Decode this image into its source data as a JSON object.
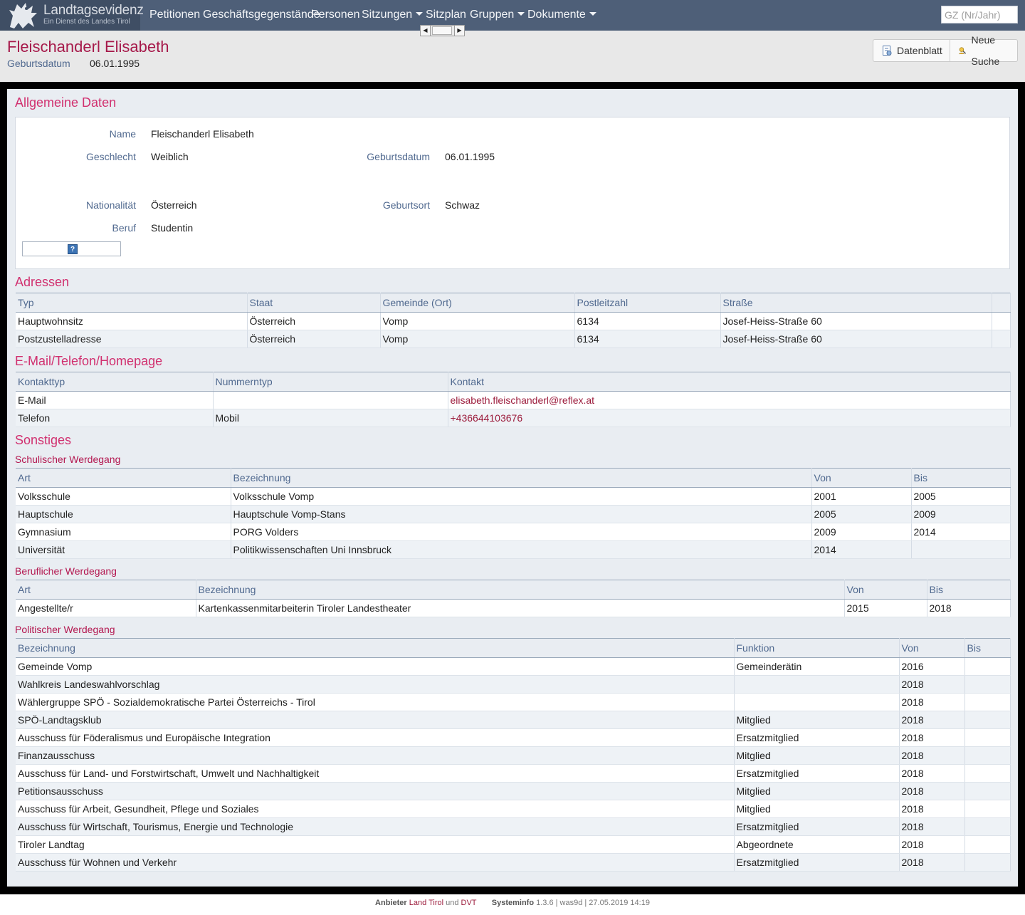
{
  "app": {
    "title": "Landtagsevidenz",
    "subtitle": "Ein Dienst des Landes Tirol"
  },
  "nav": {
    "items": [
      "Petitionen",
      "Geschäftsgegenstände",
      "Personen",
      "Sitzungen",
      "Sitzplan",
      "Gruppen",
      "Dokumente"
    ],
    "search_placeholder": "GZ (Nr/Jahr)"
  },
  "header": {
    "name": "Fleischanderl Elisabeth",
    "birth_label": "Geburtsdatum",
    "birth_value": "06.01.1995",
    "buttons": {
      "datenblatt": "Datenblatt",
      "neue_suche": "Neue Suche"
    }
  },
  "general": {
    "title": "Allgemeine Daten",
    "fields": {
      "name_label": "Name",
      "name_value": "Fleischanderl Elisabeth",
      "gender_label": "Geschlecht",
      "gender_value": "Weiblich",
      "birth_label": "Geburtsdatum",
      "birth_value": "06.01.1995",
      "nation_label": "Nationalität",
      "nation_value": "Österreich",
      "birthplace_label": "Geburtsort",
      "birthplace_value": "Schwaz",
      "job_label": "Beruf",
      "job_value": "Studentin"
    },
    "help_icon": "?"
  },
  "addresses": {
    "title": "Adressen",
    "columns": [
      "Typ",
      "Staat",
      "Gemeinde (Ort)",
      "Postleitzahl",
      "Straße"
    ],
    "rows": [
      [
        "Hauptwohnsitz",
        "Österreich",
        "Vomp",
        "6134",
        "Josef-Heiss-Straße 60"
      ],
      [
        "Postzustelladresse",
        "Österreich",
        "Vomp",
        "6134",
        "Josef-Heiss-Straße 60"
      ]
    ]
  },
  "contact": {
    "title": "E-Mail/Telefon/Homepage",
    "columns": [
      "Kontakttyp",
      "Nummerntyp",
      "Kontakt"
    ],
    "rows": [
      [
        "E-Mail",
        "",
        "elisabeth.fleischanderl@reflex.at"
      ],
      [
        "Telefon",
        "Mobil",
        "+436644103676"
      ]
    ]
  },
  "other": {
    "title": "Sonstiges",
    "school": {
      "title": "Schulischer Werdegang",
      "columns": [
        "Art",
        "Bezeichnung",
        "Von",
        "Bis"
      ],
      "rows": [
        [
          "Volksschule",
          "Volksschule Vomp",
          "2001",
          "2005"
        ],
        [
          "Hauptschule",
          "Hauptschule Vomp-Stans",
          "2005",
          "2009"
        ],
        [
          "Gymnasium",
          "PORG Volders",
          "2009",
          "2014"
        ],
        [
          "Universität",
          "Politikwissenschaften Uni Innsbruck",
          "2014",
          ""
        ]
      ]
    },
    "career": {
      "title": "Beruflicher Werdegang",
      "columns": [
        "Art",
        "Bezeichnung",
        "Von",
        "Bis"
      ],
      "rows": [
        [
          "Angestellte/r",
          "Kartenkassenmitarbeiterin Tiroler Landestheater",
          "2015",
          "2018"
        ]
      ]
    },
    "political": {
      "title": "Politischer Werdegang",
      "columns": [
        "Bezeichnung",
        "Funktion",
        "Von",
        "Bis"
      ],
      "rows": [
        [
          "Gemeinde Vomp",
          "Gemeinderätin",
          "2016",
          ""
        ],
        [
          "Wahlkreis Landeswahlvorschlag",
          "",
          "2018",
          ""
        ],
        [
          "Wählergruppe SPÖ - Sozialdemokratische Partei Österreichs - Tirol",
          "",
          "2018",
          ""
        ],
        [
          "SPÖ-Landtagsklub",
          "Mitglied",
          "2018",
          ""
        ],
        [
          "Ausschuss für Föderalismus und Europäische Integration",
          "Ersatzmitglied",
          "2018",
          ""
        ],
        [
          "Finanzausschuss",
          "Mitglied",
          "2018",
          ""
        ],
        [
          "Ausschuss für Land- und Forstwirtschaft, Umwelt und Nachhaltigkeit",
          "Ersatzmitglied",
          "2018",
          ""
        ],
        [
          "Petitionsausschuss",
          "Mitglied",
          "2018",
          ""
        ],
        [
          "Ausschuss für Arbeit, Gesundheit, Pflege und Soziales",
          "Mitglied",
          "2018",
          ""
        ],
        [
          "Ausschuss für Wirtschaft, Tourismus, Energie und Technologie",
          "Ersatzmitglied",
          "2018",
          ""
        ],
        [
          "Tiroler Landtag",
          "Abgeordnete",
          "2018",
          ""
        ],
        [
          "Ausschuss für Wohnen und Verkehr",
          "Ersatzmitglied",
          "2018",
          ""
        ]
      ]
    }
  },
  "footer": {
    "anbieter_label": "Anbieter",
    "land_tirol": "Land Tirol",
    "und": "und",
    "dvt": "DVT",
    "systeminfo_label": "Systeminfo",
    "systeminfo_value": "1.3.6 | was9d | 27.05.2019 14:19"
  },
  "colors": {
    "navbar": "#4e5f78",
    "title_accent": "#a6194a",
    "section_accent": "#d1306f",
    "label_blue": "#50698f",
    "link": "#9c1c3c"
  }
}
